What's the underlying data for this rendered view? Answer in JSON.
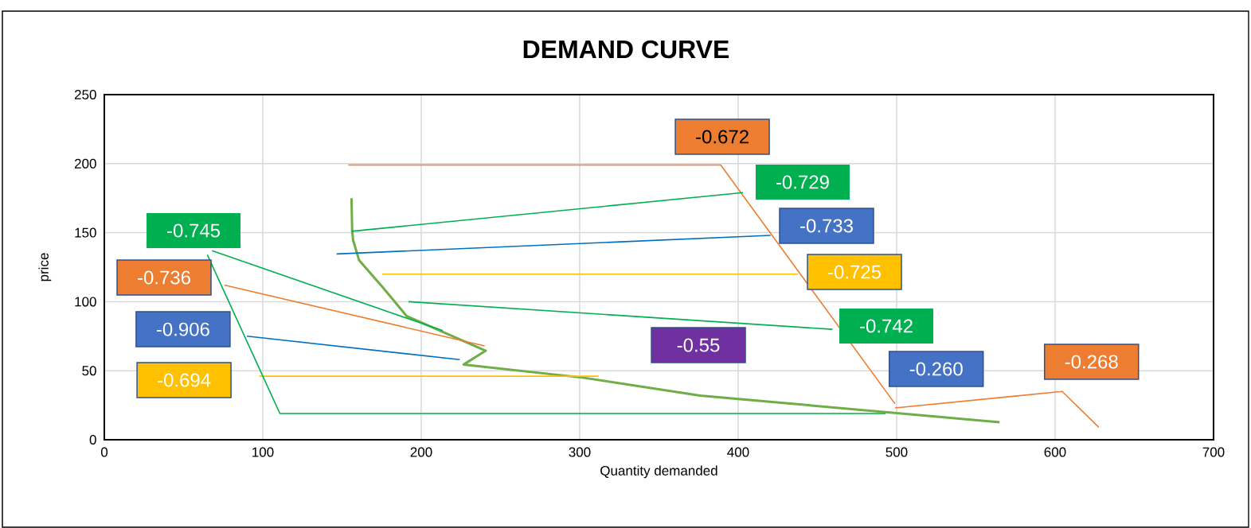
{
  "chart_data": {
    "type": "line",
    "title": "DEMAND CURVE",
    "xlabel": "Quantity demanded",
    "ylabel": "price",
    "xlim": [
      0,
      700
    ],
    "xticks": [
      0,
      100,
      200,
      300,
      400,
      500,
      600,
      700
    ],
    "ylim": [
      0,
      250
    ],
    "yticks": [
      0,
      50,
      100,
      150,
      200,
      250
    ],
    "grid": true,
    "marker": "none",
    "line_style": "solid",
    "series": [
      {
        "color": "#70ad47",
        "x": [
          156,
          156.4,
          157,
          160.8,
          176,
          190.7,
          240.7,
          226.8,
          301.8,
          376,
          565
        ],
        "values": [
          175,
          151.5,
          144.6,
          130,
          110,
          89.7,
          64.5,
          54.5,
          45,
          32,
          12.7
        ]
      },
      {
        "color": "#ed7d31",
        "x": [
          154,
          389,
          499
        ],
        "values": [
          199,
          199,
          26
        ]
      },
      {
        "color": "#00b050",
        "x": [
          156,
          403
        ],
        "values": [
          151,
          179
        ]
      },
      {
        "color": "#0070c0",
        "x": [
          146.6,
          420.4
        ],
        "values": [
          134.6,
          148
        ]
      },
      {
        "color": "#ffc000",
        "x": [
          175.4,
          437.7
        ],
        "values": [
          120,
          120
        ]
      },
      {
        "color": "#00b050",
        "x": [
          192,
          459.5
        ],
        "values": [
          100,
          80
        ]
      },
      {
        "color": "#00b050",
        "x": [
          68,
          213.6
        ],
        "values": [
          137,
          79
        ]
      },
      {
        "color": "#ed7d31",
        "x": [
          75.7,
          240
        ],
        "values": [
          112,
          68
        ]
      },
      {
        "color": "#0070c0",
        "x": [
          90,
          224.3
        ],
        "values": [
          75,
          58
        ]
      },
      {
        "color": "#ffc000",
        "x": [
          97.8,
          312
        ],
        "values": [
          46,
          46
        ]
      },
      {
        "color": "#00b050",
        "x": [
          65,
          110.8,
          493
        ],
        "values": [
          134,
          19,
          19
        ]
      },
      {
        "color": "#ed7d31",
        "x": [
          499,
          604.5,
          627.6
        ],
        "values": [
          23,
          35,
          9
        ]
      }
    ],
    "annotations": [
      "-0.672",
      "-0.729",
      "-0.733",
      "-0.725",
      "-0.742",
      "-0.745",
      "-0.736",
      "-0.906",
      "-0.694",
      "-0.55",
      "-0.260",
      "-0.268"
    ]
  }
}
